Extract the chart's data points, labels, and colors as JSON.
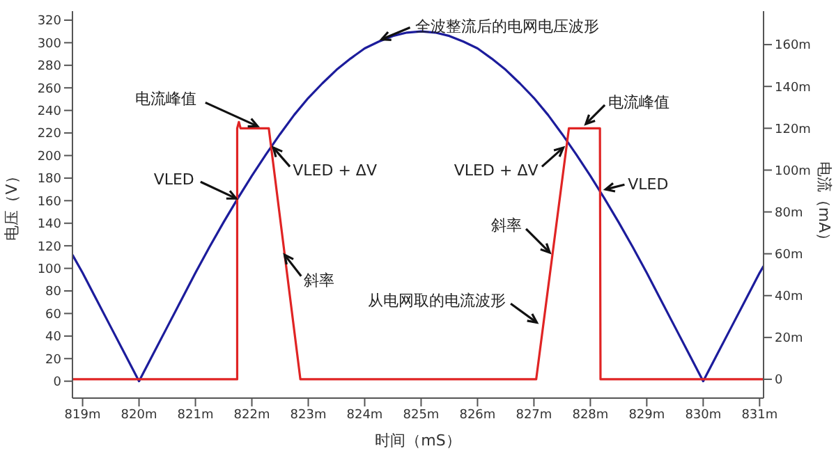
{
  "chart_data": {
    "type": "line",
    "xlabel": "时间（mS）",
    "ylabel": "电压（V）",
    "y2label": "电流（mA）",
    "xlim": [
      818.82,
      831.07
    ],
    "xticks": [
      {
        "value": 819,
        "label": "819m"
      },
      {
        "value": 820,
        "label": "820m"
      },
      {
        "value": 821,
        "label": "821m"
      },
      {
        "value": 822,
        "label": "822m"
      },
      {
        "value": 823,
        "label": "823m"
      },
      {
        "value": 824,
        "label": "824m"
      },
      {
        "value": 825,
        "label": "825m"
      },
      {
        "value": 826,
        "label": "826m"
      },
      {
        "value": 827,
        "label": "827m"
      },
      {
        "value": 828,
        "label": "828m"
      },
      {
        "value": 829,
        "label": "829m"
      },
      {
        "value": 830,
        "label": "830m"
      },
      {
        "value": 831,
        "label": "831m"
      }
    ],
    "ylim": [
      -15,
      328
    ],
    "yticks": [
      0,
      20,
      40,
      60,
      80,
      100,
      120,
      140,
      160,
      180,
      200,
      220,
      240,
      260,
      280,
      300,
      320
    ],
    "y2lim": [
      -9,
      176
    ],
    "y2ticks": [
      0,
      {
        "value": 20,
        "label": "20m"
      },
      {
        "value": 40,
        "label": "40m"
      },
      {
        "value": 60,
        "label": "60m"
      },
      {
        "value": 80,
        "label": "80m"
      },
      {
        "value": 100,
        "label": "100m"
      },
      {
        "value": 120,
        "label": "120m"
      },
      {
        "value": 140,
        "label": "140m"
      },
      {
        "value": 160,
        "label": "160m"
      }
    ],
    "marker": "none",
    "line_style": "solid",
    "series": [
      {
        "color": "#1c1c9c",
        "x": [
          818.82,
          819,
          819.25,
          819.5,
          819.75,
          820,
          820.25,
          820.5,
          820.75,
          821,
          821.25,
          821.5,
          821.75,
          822,
          822.25,
          822.5,
          822.75,
          823,
          823.25,
          823.5,
          823.75,
          824,
          824.25,
          824.5,
          824.75,
          825,
          825.25,
          825.5,
          825.75,
          826,
          826.25,
          826.5,
          826.75,
          827,
          827.25,
          827.5,
          827.75,
          828,
          828.25,
          828.5,
          828.75,
          829,
          829.25,
          829.5,
          829.75,
          830,
          830.25,
          830.5,
          830.75,
          831,
          831.07
        ],
        "values": [
          112,
          96,
          72,
          48,
          24,
          0,
          24,
          48,
          72,
          96,
          119,
          141,
          162,
          182,
          201,
          219,
          236,
          251,
          264,
          276,
          286,
          295,
          301,
          306,
          309,
          310,
          309,
          306,
          301,
          295,
          286,
          276,
          264,
          251,
          236,
          219,
          201,
          182,
          162,
          141,
          119,
          96,
          72,
          48,
          24,
          0,
          24,
          48,
          72,
          96,
          102
        ]
      },
      {
        "color": "#e02424",
        "axis": "y2",
        "x": [
          818.82,
          821.74,
          821.74,
          821.77,
          821.8,
          822.3,
          822.86,
          827.04,
          827.62,
          828.17,
          828.18,
          831.07
        ],
        "values": [
          0,
          0,
          120,
          123,
          120,
          120,
          0,
          0,
          120,
          120,
          0,
          0
        ]
      }
    ],
    "annotations": [
      {
        "text": "全波整流后的电网电压波形",
        "x": 824.3,
        "y": 303
      },
      {
        "text": "电流峰值",
        "x": 822.1,
        "y": 226
      },
      {
        "text": "VLED",
        "x": 821.72,
        "y": 162
      },
      {
        "text": "VLED + ΔV",
        "x": 822.38,
        "y": 207
      },
      {
        "text": "斜率",
        "x": 822.58,
        "y": 112
      },
      {
        "text": "从电网取的电流波形",
        "x": 827.05,
        "y": 52
      },
      {
        "text": "斜率",
        "x": 827.28,
        "y": 114
      },
      {
        "text": "VLED + ΔV",
        "x": 827.52,
        "y": 207
      },
      {
        "text": "电流峰值",
        "x": 827.92,
        "y": 228
      },
      {
        "text": "VLED",
        "x": 828.27,
        "y": 170
      }
    ]
  }
}
